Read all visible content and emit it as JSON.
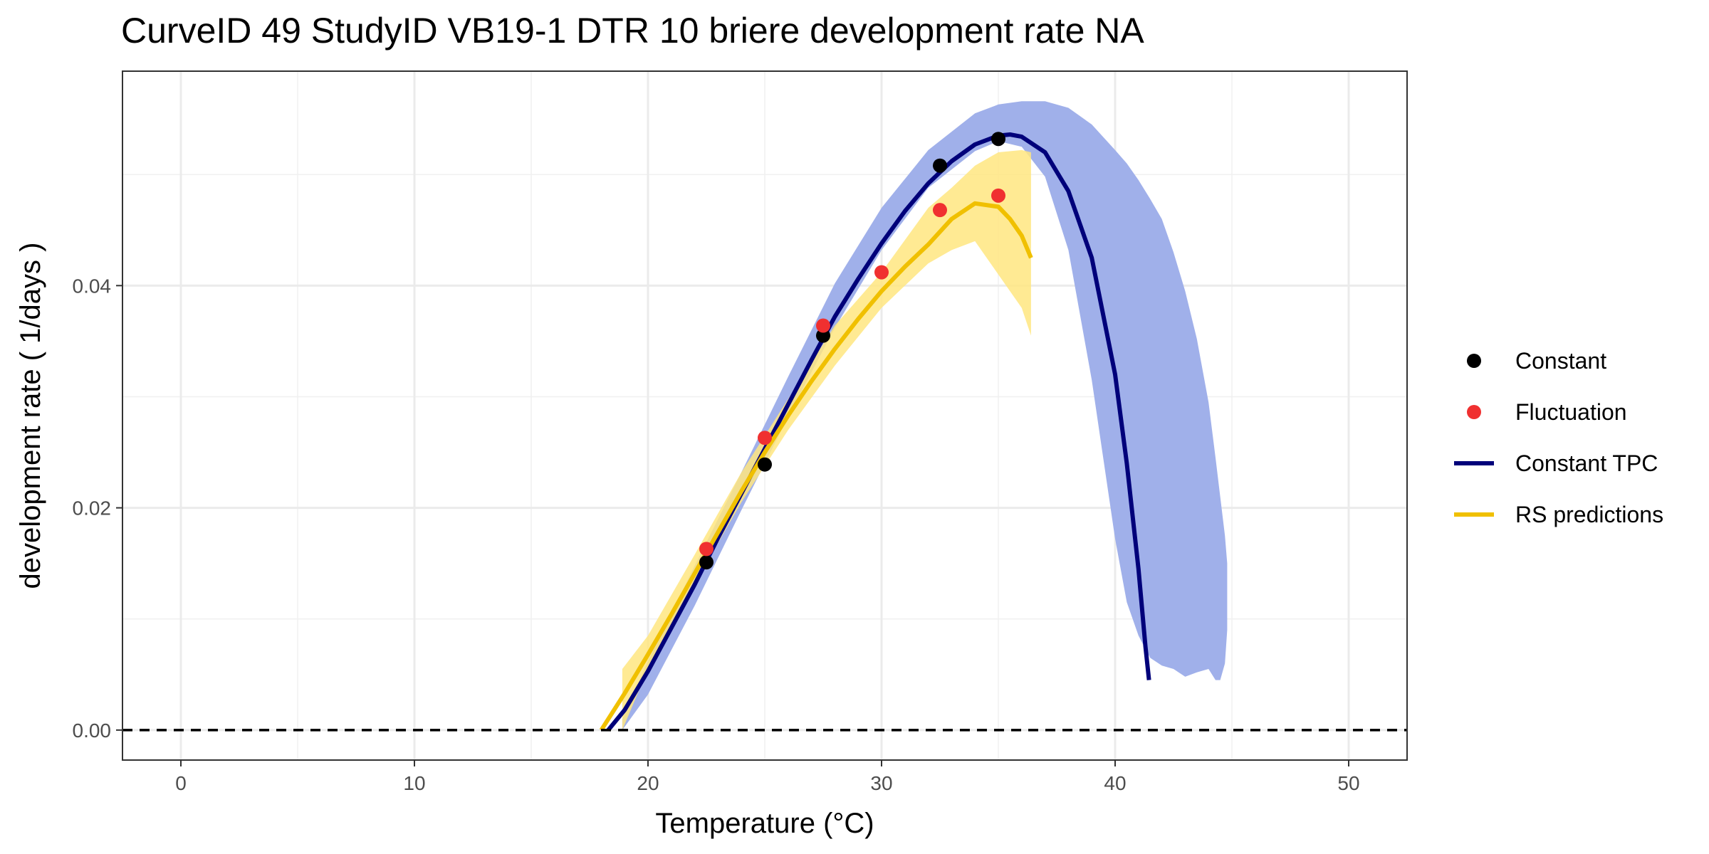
{
  "chart_data": {
    "type": "line",
    "title": "CurveID 49 StudyID VB19-1 DTR 10 briere development rate NA",
    "xlabel": "Temperature (°C)",
    "ylabel": "development rate ( 1/days )",
    "xlim": [
      -2.5,
      52.5
    ],
    "ylim": [
      -0.0027,
      0.0593
    ],
    "x_ticks": [
      0,
      10,
      20,
      30,
      40,
      50
    ],
    "x_tick_labels": [
      "0",
      "10",
      "20",
      "30",
      "40",
      "50"
    ],
    "y_ticks": [
      0.0,
      0.02,
      0.04
    ],
    "y_tick_labels": [
      "0.00",
      "0.02",
      "0.04"
    ],
    "grid": true,
    "legend_position": "right",
    "reference_line": {
      "y": 0.0,
      "style": "dashed"
    },
    "colors": {
      "constant_points": "#000000",
      "fluctuation_points": "#f03030",
      "constant_tpc": "#00007a",
      "constant_tpc_band": "#a0b0ea",
      "rs_predictions": "#f0c000",
      "rs_band": "#ffe680"
    },
    "series": [
      {
        "name": "Constant",
        "kind": "points",
        "x": [
          22.5,
          25.0,
          27.5,
          32.5,
          35.0
        ],
        "y": [
          0.0151,
          0.0239,
          0.0355,
          0.0508,
          0.0532
        ]
      },
      {
        "name": "Fluctuation",
        "kind": "points",
        "x": [
          22.5,
          25.0,
          27.5,
          30.0,
          32.5,
          35.0
        ],
        "y": [
          0.0163,
          0.0263,
          0.0364,
          0.0412,
          0.0468,
          0.0481
        ]
      },
      {
        "name": "Constant TPC",
        "kind": "line",
        "x": [
          18.3,
          19,
          20,
          21,
          22,
          23,
          24,
          25,
          26,
          27,
          28,
          29,
          30,
          31,
          32,
          33,
          34,
          35,
          35.5,
          36,
          37,
          38,
          39,
          40,
          40.5,
          41,
          41.3,
          41.45
        ],
        "y": [
          0.0,
          0.0018,
          0.0053,
          0.0092,
          0.0131,
          0.0173,
          0.0213,
          0.0253,
          0.0293,
          0.0333,
          0.0372,
          0.0406,
          0.0438,
          0.0467,
          0.0492,
          0.0512,
          0.0527,
          0.0535,
          0.0536,
          0.0534,
          0.052,
          0.0485,
          0.0425,
          0.032,
          0.024,
          0.0145,
          0.0075,
          0.0045
        ]
      },
      {
        "name": "Constant TPC band",
        "kind": "band",
        "x": [
          18.9,
          20,
          22,
          24,
          26,
          28,
          30,
          32,
          34,
          35,
          36,
          37,
          38,
          39,
          40,
          40.5,
          41,
          41.5,
          42,
          42.5,
          43,
          43.5,
          44,
          44.3,
          44.5,
          44.7,
          44.8
        ],
        "ymin": [
          0.0,
          0.0032,
          0.0112,
          0.0198,
          0.0282,
          0.0362,
          0.0432,
          0.0488,
          0.0521,
          0.053,
          0.0525,
          0.0498,
          0.0432,
          0.0315,
          0.0172,
          0.0115,
          0.0085,
          0.0065,
          0.0058,
          0.0055,
          0.0048,
          0.0052,
          0.0055,
          0.0045,
          0.0045,
          0.006,
          0.009
        ],
        "ymax": [
          0.001,
          0.0062,
          0.0148,
          0.0232,
          0.0318,
          0.0402,
          0.047,
          0.0522,
          0.0555,
          0.0563,
          0.0566,
          0.0566,
          0.056,
          0.0545,
          0.0522,
          0.051,
          0.0495,
          0.0478,
          0.046,
          0.043,
          0.0395,
          0.0352,
          0.0295,
          0.0245,
          0.021,
          0.0175,
          0.015
        ]
      },
      {
        "name": "RS predictions",
        "kind": "line",
        "x": [
          18.0,
          19,
          20,
          21,
          22,
          23,
          24,
          25,
          26,
          27,
          28,
          29,
          30,
          31,
          32,
          33,
          34,
          35,
          35.5,
          36,
          36.4
        ],
        "y": [
          0.0,
          0.0033,
          0.0068,
          0.0104,
          0.0141,
          0.0178,
          0.0215,
          0.025,
          0.0283,
          0.0314,
          0.0343,
          0.037,
          0.0395,
          0.0417,
          0.0437,
          0.046,
          0.0474,
          0.0471,
          0.046,
          0.0445,
          0.0425
        ]
      },
      {
        "name": "RS predictions band",
        "kind": "band",
        "x": [
          18.9,
          20,
          22,
          24,
          26,
          28,
          30,
          32,
          33,
          34,
          35,
          36,
          36.4
        ],
        "ymin": [
          0.0,
          0.0055,
          0.0132,
          0.0205,
          0.027,
          0.0328,
          0.038,
          0.042,
          0.0432,
          0.044,
          0.041,
          0.038,
          0.0355
        ],
        "ymax": [
          0.0055,
          0.0085,
          0.0158,
          0.0232,
          0.0298,
          0.0364,
          0.0412,
          0.047,
          0.0488,
          0.0508,
          0.052,
          0.0522,
          0.052
        ]
      }
    ]
  }
}
